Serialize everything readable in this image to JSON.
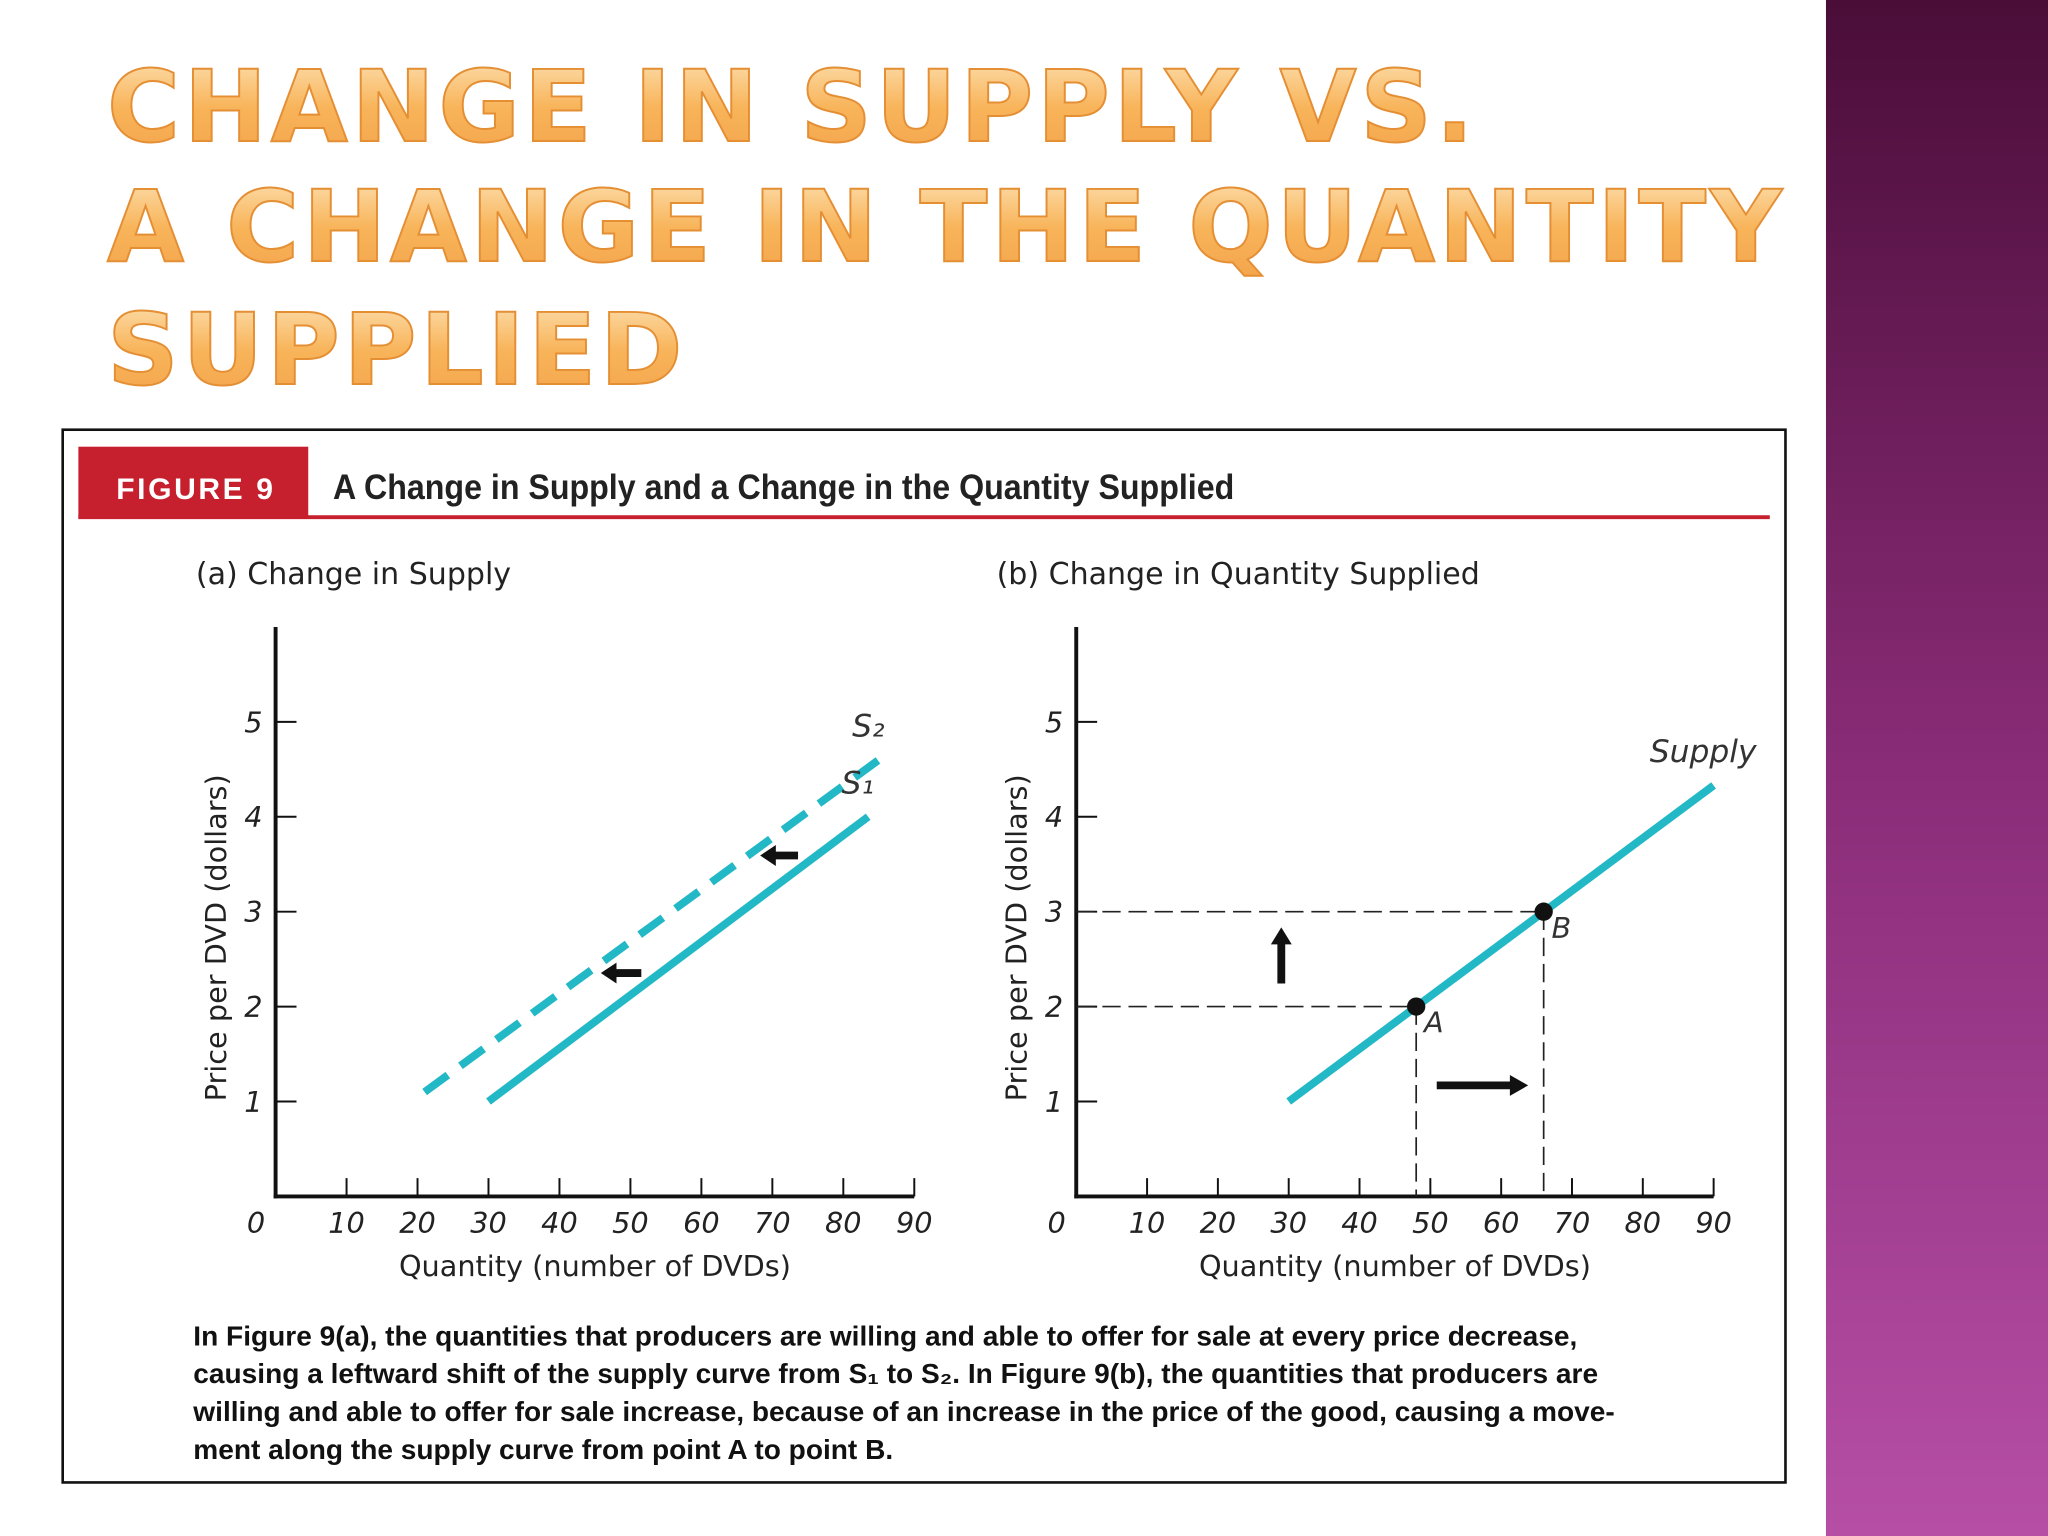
{
  "slide_title": [
    "CHANGE IN SUPPLY VS.",
    "A CHANGE IN THE QUANTITY",
    "SUPPLIED"
  ],
  "figure": {
    "label": "FIGURE 9",
    "title": "A Change in Supply and a Change in the Quantity Supplied",
    "caption": [
      "In Figure 9(a), the quantities that producers are willing and able to offer for sale at every price decrease,",
      "causing a leftward shift of the supply curve from S₁ to S₂. In Figure 9(b), the quantities that producers are",
      "willing and able to offer for sale increase, because of an increase in the price of the good, causing a move-",
      "ment along the supply curve from point A to point B."
    ]
  },
  "chart_data": [
    {
      "type": "line",
      "title": "(a) Change in Supply",
      "xlabel": "Quantity (number of DVDs)",
      "ylabel": "Price per DVD (dollars)",
      "xlim": [
        0,
        90
      ],
      "ylim": [
        0,
        6
      ],
      "xticks": [
        0,
        10,
        20,
        30,
        40,
        50,
        60,
        70,
        80,
        90
      ],
      "yticks": [
        1,
        2,
        3,
        4,
        5
      ],
      "grid": false,
      "series": [
        {
          "name": "S₂",
          "color": "#22b8c6",
          "dashed": true,
          "x": [
            21,
            85
          ],
          "values": [
            1.1,
            4.6
          ]
        },
        {
          "name": "S₁",
          "color": "#22b8c6",
          "dashed": false,
          "x": [
            30,
            83.5
          ],
          "values": [
            1,
            4
          ]
        }
      ]
    },
    {
      "type": "line",
      "title": "(b) Change in Quantity Supplied",
      "xlabel": "Quantity (number of DVDs)",
      "ylabel": "Price per DVD (dollars)",
      "xlim": [
        0,
        90
      ],
      "ylim": [
        0,
        6
      ],
      "xticks": [
        0,
        10,
        20,
        30,
        40,
        50,
        60,
        70,
        80,
        90
      ],
      "yticks": [
        1,
        2,
        3,
        4,
        5
      ],
      "grid": false,
      "series": [
        {
          "name": "Supply",
          "color": "#22b8c6",
          "dashed": false,
          "x": [
            30,
            90
          ],
          "values": [
            1,
            4.33
          ]
        }
      ],
      "points": [
        {
          "label": "A",
          "x": 48,
          "y": 2
        },
        {
          "label": "B",
          "x": 66,
          "y": 3
        }
      ]
    }
  ]
}
